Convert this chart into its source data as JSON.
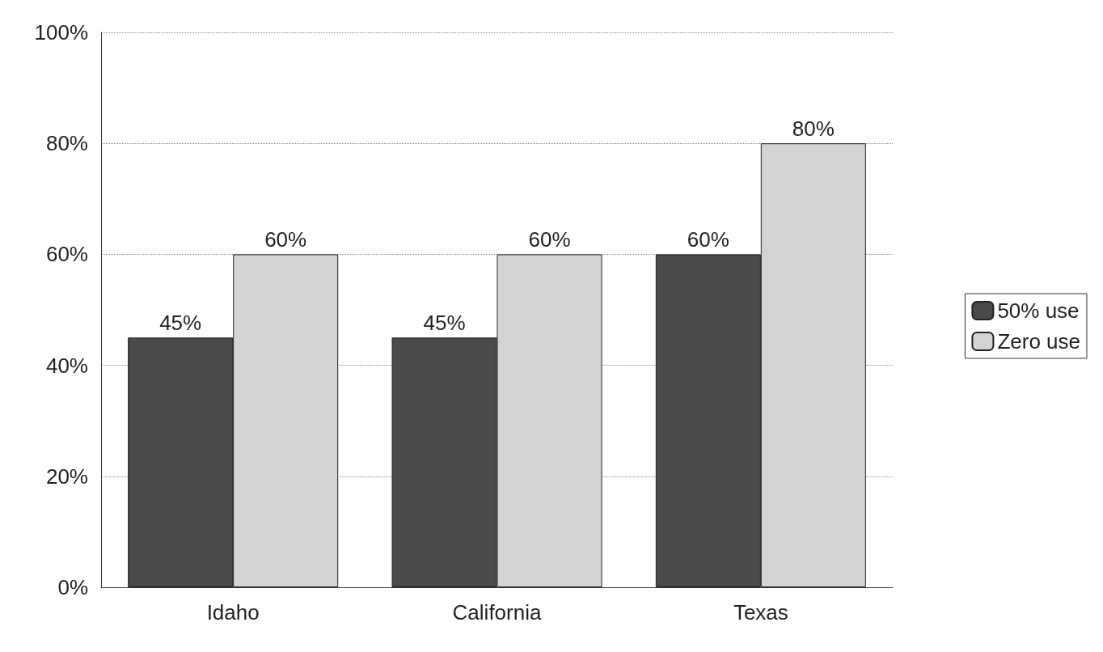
{
  "chart_data": {
    "type": "bar",
    "categories": [
      "Idaho",
      "California",
      "Texas"
    ],
    "series": [
      {
        "name": "50% use",
        "color": "#4a4a4a",
        "values": [
          45,
          45,
          60
        ],
        "value_labels": [
          "45%",
          "45%",
          "60%"
        ]
      },
      {
        "name": "Zero use",
        "color": "#d4d4d4",
        "values": [
          60,
          60,
          80
        ],
        "value_labels": [
          "60%",
          "60%",
          "80%"
        ]
      }
    ],
    "ylim": [
      0,
      100
    ],
    "yticks": [
      {
        "value": 0,
        "label": "0%"
      },
      {
        "value": 20,
        "label": "20%"
      },
      {
        "value": 40,
        "label": "40%"
      },
      {
        "value": 60,
        "label": "60%"
      },
      {
        "value": 80,
        "label": "80%"
      },
      {
        "value": 100,
        "label": "100%"
      }
    ],
    "grid": "y",
    "legend": "right"
  }
}
